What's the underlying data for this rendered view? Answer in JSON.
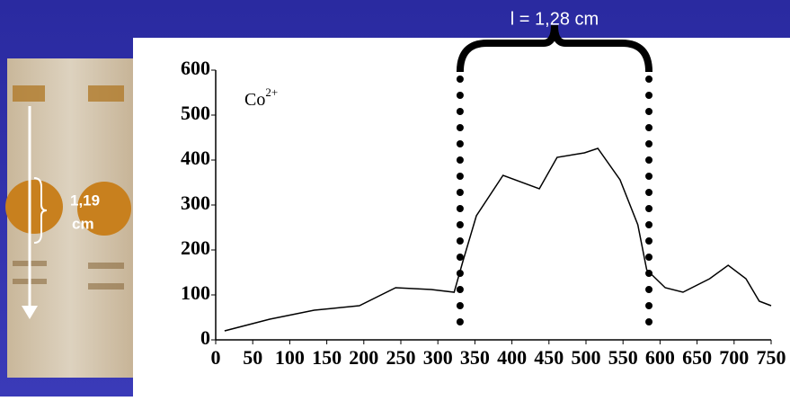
{
  "chart_data": {
    "type": "line",
    "annotations": {
      "length_top": "l = 1,28 cm",
      "ion": "Co",
      "ion_charge": "2+",
      "gel_value": "1,19",
      "gel_unit": "cm"
    },
    "x": [
      12,
      73,
      133,
      158,
      194,
      243,
      291,
      322,
      334,
      352,
      388,
      437,
      461,
      498,
      516,
      546,
      570,
      582,
      607,
      631,
      667,
      692,
      716,
      734,
      750
    ],
    "values": [
      20,
      46,
      66,
      70,
      76,
      116,
      112,
      106,
      176,
      276,
      366,
      336,
      406,
      416,
      426,
      356,
      256,
      156,
      116,
      106,
      136,
      166,
      136,
      86,
      76
    ],
    "color": "#000000",
    "markers": [
      330,
      585
    ],
    "xlim": [
      0,
      750
    ],
    "ylim": [
      0,
      600
    ],
    "xticks": [
      0,
      50,
      100,
      150,
      200,
      250,
      300,
      350,
      400,
      450,
      500,
      550,
      600,
      650,
      700,
      750
    ],
    "yticks": [
      0,
      100,
      200,
      300,
      400,
      500,
      600
    ]
  }
}
